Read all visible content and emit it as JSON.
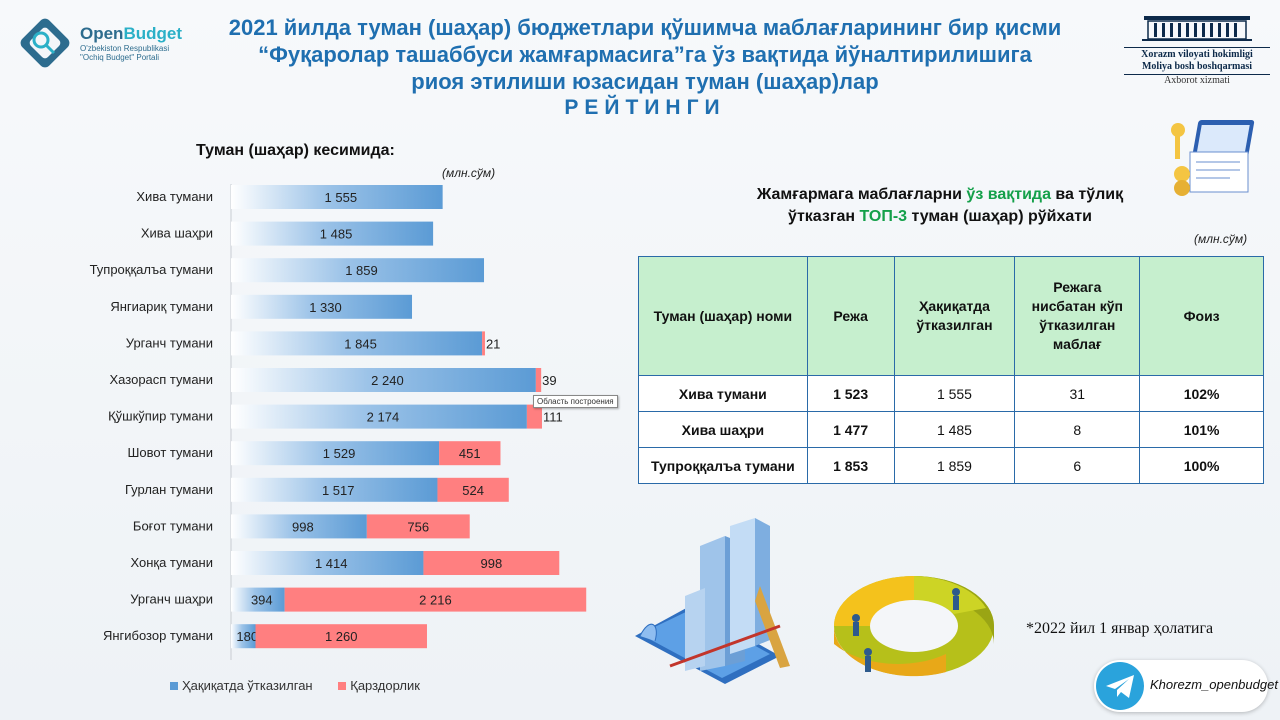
{
  "logo": {
    "brand_a": "Open",
    "brand_b": "Budget",
    "sub": "O'zbekiston Respublikasi \"Ochiq Budget\" Portali"
  },
  "title": {
    "line1": "2021 йилда туман (шаҳар) бюджетлари қўшимча маблағларининг бир қисми",
    "line2": "“Фуқаролар ташаббуси жамғармасига”га ўз вақтида йўналтирилишига",
    "line3": "риоя этилиши юзасидан туман (шаҳар)лар",
    "line4": "РЕЙТИНГИ"
  },
  "hokim": {
    "line1": "Xorazm viloyati hokimligi",
    "line2": "Moliya bosh boshqarmasi",
    "line3": "Axborot xizmati"
  },
  "chart_heading": "Туман (шаҳар) кесимида:",
  "chart_unit": "(млн.сўм)",
  "tooltip": "Область построения",
  "colors": {
    "transferred": "#5b9bd5",
    "debt": "#ff7f80",
    "table_header": "#c6efce",
    "green_text": "#14a04a",
    "title_blue": "#1f6fb0"
  },
  "chart_data": {
    "type": "bar",
    "orientation": "horizontal",
    "stacked": true,
    "categories": [
      "Хива тумани",
      "Хива шаҳри",
      "Тупроққалъа тумани",
      "Янгиариқ тумани",
      "Урганч тумани",
      "Хазорасп тумани",
      "Қўшкўпир тумани",
      "Шовот тумани",
      "Гурлан тумани",
      "Боғот тумани",
      "Хонқа тумани",
      "Урганч шаҳри",
      "Янгибозор тумани"
    ],
    "series": [
      {
        "name": "Ҳақиқатда ўтказилган",
        "values": [
          1555,
          1485,
          1859,
          1330,
          1845,
          2240,
          2174,
          1529,
          1517,
          998,
          1414,
          394,
          180
        ],
        "labels": [
          "1 555",
          "1 485",
          "1 859",
          "1 330",
          "1 845",
          "2 240",
          "2 174",
          "1 529",
          "1 517",
          "998",
          "1 414",
          "394",
          "180"
        ]
      },
      {
        "name": "Қарздорлик",
        "values": [
          0,
          0,
          0,
          0,
          21,
          39,
          111,
          451,
          524,
          756,
          998,
          2216,
          1260
        ],
        "labels": [
          "",
          "",
          "",
          "",
          "21",
          "39",
          "111",
          "451",
          "524",
          "756",
          "998",
          "2 216",
          "1 260"
        ]
      }
    ],
    "xlim": [
      0,
      3400
    ]
  },
  "top3": {
    "title_a": "Жамғармага маблағларни ",
    "title_g": "ўз вақтида",
    "title_b": " ва тўлиқ",
    "title_c": "ўтказган ",
    "title_g2": "ТОП-3",
    "title_d": " туман (шаҳар) рўйхати",
    "unit": "(млн.сўм)",
    "headers": [
      "Туман (шаҳар) номи",
      "Режа",
      "Ҳақиқатда ўтказилган",
      "Режага нисбатан кўп ўтказилган маблағ",
      "Фоиз"
    ],
    "rows": [
      [
        "Хива тумани",
        "1 523",
        "1 555",
        "31",
        "102%"
      ],
      [
        "Хива шаҳри",
        "1 477",
        "1 485",
        "8",
        "101%"
      ],
      [
        "Тупроққалъа тумани",
        "1 853",
        "1 859",
        "6",
        "100%"
      ]
    ]
  },
  "note": "*2022 йил 1 январ ҳолатига",
  "telegram": {
    "handle": "Khorezm_openbudget",
    "icon": "telegram-icon"
  }
}
